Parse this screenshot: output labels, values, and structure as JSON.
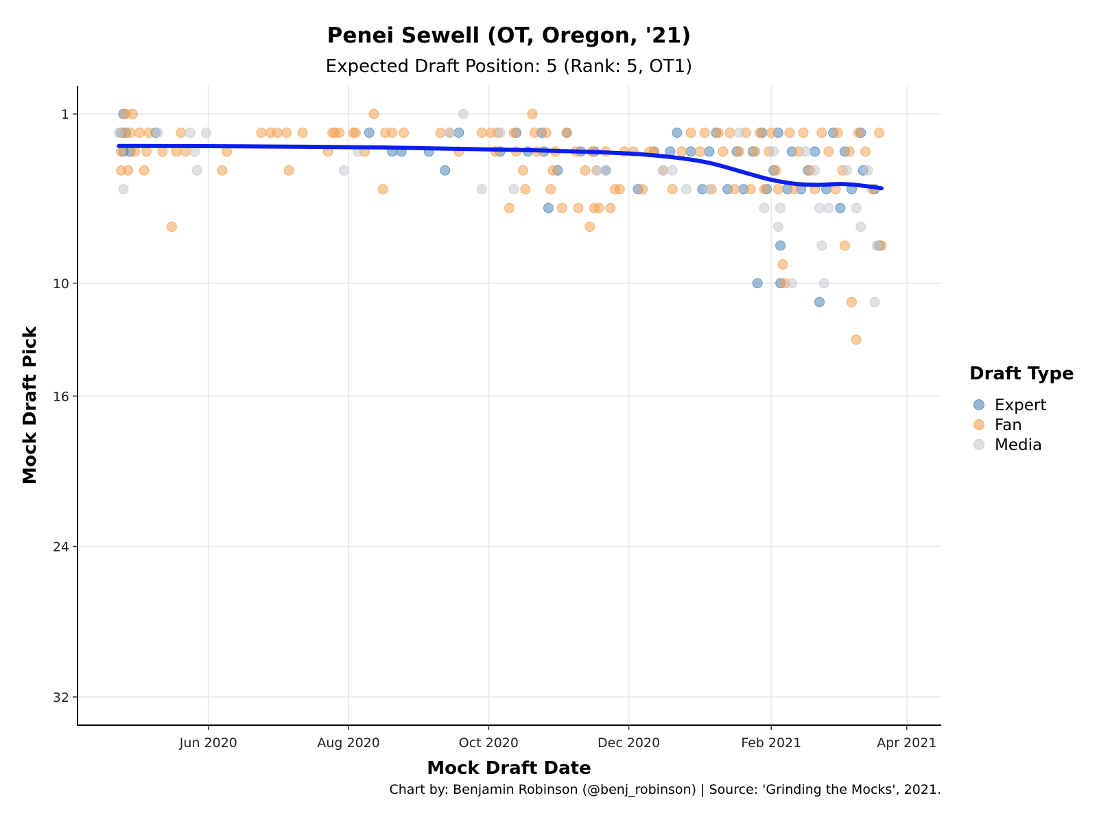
{
  "chart_data": {
    "type": "scatter",
    "title": "Penei Sewell (OT, Oregon, '21)",
    "subtitle": "Expected Draft Position: 5 (Rank: 5, OT1)",
    "xlabel": "Mock Draft Date",
    "ylabel": "Mock Draft Pick",
    "caption": "Chart by: Benjamin Robinson (@benj_robinson) | Source: 'Grinding the Mocks', 2021.",
    "x_ticks": [
      "2020-06-01",
      "2020-08-01",
      "2020-10-01",
      "2020-12-01",
      "2021-02-01",
      "2021-04-01"
    ],
    "x_tick_labels": [
      "Jun 2020",
      "Aug 2020",
      "Oct 2020",
      "Dec 2020",
      "Feb 2021",
      "Apr 2021"
    ],
    "xlim": [
      "2020-04-05",
      "2021-04-16"
    ],
    "y_ticks": [
      1,
      10,
      16,
      24,
      32
    ],
    "ylim": [
      33.5,
      -0.5
    ],
    "y_reversed": true,
    "grid": true,
    "legend": {
      "title": "Draft Type",
      "position": "right",
      "entries": [
        "Expert",
        "Fan",
        "Media"
      ]
    },
    "colors": {
      "Expert": "#4f86b8",
      "Fan": "#f4a253",
      "Media": "#c3c8d0",
      "trend": "#0a1ef0"
    },
    "series": [
      {
        "name": "Expert",
        "points": [
          [
            "2020-04-24",
            2
          ],
          [
            "2020-04-25",
            1
          ],
          [
            "2020-04-25",
            3
          ],
          [
            "2020-04-26",
            2
          ],
          [
            "2020-04-28",
            3
          ],
          [
            "2020-05-09",
            2
          ],
          [
            "2020-08-10",
            2
          ],
          [
            "2020-08-20",
            3
          ],
          [
            "2020-08-24",
            3
          ],
          [
            "2020-09-05",
            3
          ],
          [
            "2020-09-12",
            4
          ],
          [
            "2020-09-18",
            2
          ],
          [
            "2020-10-06",
            3
          ],
          [
            "2020-10-13",
            2
          ],
          [
            "2020-10-18",
            3
          ],
          [
            "2020-10-24",
            2
          ],
          [
            "2020-10-25",
            3
          ],
          [
            "2020-10-27",
            6
          ],
          [
            "2020-10-31",
            4
          ],
          [
            "2020-11-04",
            2
          ],
          [
            "2020-11-10",
            3
          ],
          [
            "2020-11-16",
            3
          ],
          [
            "2020-11-21",
            4
          ],
          [
            "2020-12-05",
            5
          ],
          [
            "2020-12-12",
            3
          ],
          [
            "2020-12-19",
            3
          ],
          [
            "2020-12-22",
            2
          ],
          [
            "2020-12-28",
            3
          ],
          [
            "2021-01-02",
            5
          ],
          [
            "2021-01-05",
            3
          ],
          [
            "2021-01-08",
            2
          ],
          [
            "2021-01-13",
            5
          ],
          [
            "2021-01-17",
            3
          ],
          [
            "2021-01-20",
            5
          ],
          [
            "2021-01-24",
            3
          ],
          [
            "2021-01-26",
            10
          ],
          [
            "2021-01-28",
            2
          ],
          [
            "2021-01-30",
            5
          ],
          [
            "2021-02-02",
            4
          ],
          [
            "2021-02-04",
            2
          ],
          [
            "2021-02-05",
            8
          ],
          [
            "2021-02-05",
            10
          ],
          [
            "2021-02-08",
            5
          ],
          [
            "2021-02-10",
            3
          ],
          [
            "2021-02-14",
            5
          ],
          [
            "2021-02-17",
            4
          ],
          [
            "2021-02-20",
            3
          ],
          [
            "2021-02-22",
            11
          ],
          [
            "2021-02-25",
            5
          ],
          [
            "2021-02-28",
            2
          ],
          [
            "2021-03-03",
            6
          ],
          [
            "2021-03-05",
            3
          ],
          [
            "2021-03-08",
            5
          ],
          [
            "2021-03-12",
            2
          ],
          [
            "2021-03-13",
            4
          ],
          [
            "2021-03-18",
            5
          ],
          [
            "2021-03-20",
            8
          ]
        ]
      },
      {
        "name": "Fan",
        "points": [
          [
            "2020-04-24",
            3
          ],
          [
            "2020-04-24",
            4
          ],
          [
            "2020-04-25",
            2
          ],
          [
            "2020-04-26",
            1
          ],
          [
            "2020-04-27",
            4
          ],
          [
            "2020-04-28",
            2
          ],
          [
            "2020-04-29",
            1
          ],
          [
            "2020-04-30",
            3
          ],
          [
            "2020-05-02",
            2
          ],
          [
            "2020-05-04",
            4
          ],
          [
            "2020-05-05",
            3
          ],
          [
            "2020-05-06",
            2
          ],
          [
            "2020-05-12",
            3
          ],
          [
            "2020-05-16",
            7
          ],
          [
            "2020-05-18",
            3
          ],
          [
            "2020-05-20",
            2
          ],
          [
            "2020-05-22",
            3
          ],
          [
            "2020-06-07",
            4
          ],
          [
            "2020-06-09",
            3
          ],
          [
            "2020-06-24",
            2
          ],
          [
            "2020-06-28",
            2
          ],
          [
            "2020-07-01",
            2
          ],
          [
            "2020-07-05",
            2
          ],
          [
            "2020-07-06",
            4
          ],
          [
            "2020-07-12",
            2
          ],
          [
            "2020-07-23",
            3
          ],
          [
            "2020-07-25",
            2
          ],
          [
            "2020-07-26",
            2
          ],
          [
            "2020-07-28",
            2
          ],
          [
            "2020-08-03",
            2
          ],
          [
            "2020-08-04",
            2
          ],
          [
            "2020-08-08",
            3
          ],
          [
            "2020-08-12",
            1
          ],
          [
            "2020-08-16",
            5
          ],
          [
            "2020-08-17",
            2
          ],
          [
            "2020-08-20",
            2
          ],
          [
            "2020-08-25",
            2
          ],
          [
            "2020-09-10",
            2
          ],
          [
            "2020-09-14",
            2
          ],
          [
            "2020-09-18",
            3
          ],
          [
            "2020-09-28",
            2
          ],
          [
            "2020-10-02",
            2
          ],
          [
            "2020-10-04",
            3
          ],
          [
            "2020-10-05",
            2
          ],
          [
            "2020-10-10",
            6
          ],
          [
            "2020-10-12",
            2
          ],
          [
            "2020-10-13",
            3
          ],
          [
            "2020-10-16",
            4
          ],
          [
            "2020-10-17",
            5
          ],
          [
            "2020-10-20",
            1
          ],
          [
            "2020-10-21",
            2
          ],
          [
            "2020-10-22",
            3
          ],
          [
            "2020-10-26",
            2
          ],
          [
            "2020-10-28",
            5
          ],
          [
            "2020-10-29",
            4
          ],
          [
            "2020-10-30",
            3
          ],
          [
            "2020-11-02",
            6
          ],
          [
            "2020-11-04",
            2
          ],
          [
            "2020-11-08",
            3
          ],
          [
            "2020-11-09",
            6
          ],
          [
            "2020-11-12",
            4
          ],
          [
            "2020-11-14",
            7
          ],
          [
            "2020-11-15",
            3
          ],
          [
            "2020-11-16",
            6
          ],
          [
            "2020-11-17",
            4
          ],
          [
            "2020-11-18",
            6
          ],
          [
            "2020-11-21",
            3
          ],
          [
            "2020-11-23",
            6
          ],
          [
            "2020-11-25",
            5
          ],
          [
            "2020-11-27",
            5
          ],
          [
            "2020-11-29",
            3
          ],
          [
            "2020-12-03",
            3
          ],
          [
            "2020-12-07",
            5
          ],
          [
            "2020-12-10",
            3
          ],
          [
            "2020-12-12",
            3
          ],
          [
            "2020-12-16",
            4
          ],
          [
            "2020-12-20",
            5
          ],
          [
            "2020-12-24",
            3
          ],
          [
            "2020-12-28",
            2
          ],
          [
            "2021-01-01",
            3
          ],
          [
            "2021-01-03",
            2
          ],
          [
            "2021-01-06",
            5
          ],
          [
            "2021-01-09",
            2
          ],
          [
            "2021-01-11",
            3
          ],
          [
            "2021-01-14",
            2
          ],
          [
            "2021-01-16",
            5
          ],
          [
            "2021-01-18",
            3
          ],
          [
            "2021-01-21",
            2
          ],
          [
            "2021-01-23",
            5
          ],
          [
            "2021-01-25",
            3
          ],
          [
            "2021-01-27",
            2
          ],
          [
            "2021-01-29",
            5
          ],
          [
            "2021-01-31",
            3
          ],
          [
            "2021-02-01",
            2
          ],
          [
            "2021-02-03",
            4
          ],
          [
            "2021-02-04",
            5
          ],
          [
            "2021-02-06",
            9
          ],
          [
            "2021-02-07",
            10
          ],
          [
            "2021-02-09",
            2
          ],
          [
            "2021-02-11",
            5
          ],
          [
            "2021-02-13",
            3
          ],
          [
            "2021-02-15",
            2
          ],
          [
            "2021-02-18",
            4
          ],
          [
            "2021-02-20",
            5
          ],
          [
            "2021-02-23",
            2
          ],
          [
            "2021-02-26",
            3
          ],
          [
            "2021-03-01",
            5
          ],
          [
            "2021-03-02",
            2
          ],
          [
            "2021-03-04",
            4
          ],
          [
            "2021-03-05",
            8
          ],
          [
            "2021-03-07",
            3
          ],
          [
            "2021-03-08",
            11
          ],
          [
            "2021-03-10",
            13
          ],
          [
            "2021-03-11",
            2
          ],
          [
            "2021-03-14",
            3
          ],
          [
            "2021-03-17",
            5
          ],
          [
            "2021-03-20",
            2
          ],
          [
            "2021-03-21",
            8
          ]
        ]
      },
      {
        "name": "Media",
        "points": [
          [
            "2020-04-23",
            2
          ],
          [
            "2020-04-25",
            5
          ],
          [
            "2020-05-10",
            2
          ],
          [
            "2020-05-24",
            2
          ],
          [
            "2020-05-26",
            3
          ],
          [
            "2020-05-27",
            4
          ],
          [
            "2020-05-31",
            2
          ],
          [
            "2020-07-30",
            4
          ],
          [
            "2020-08-05",
            3
          ],
          [
            "2020-09-14",
            2
          ],
          [
            "2020-09-20",
            1
          ],
          [
            "2020-09-28",
            5
          ],
          [
            "2020-10-06",
            2
          ],
          [
            "2020-10-12",
            5
          ],
          [
            "2020-11-17",
            4
          ],
          [
            "2020-11-21",
            4
          ],
          [
            "2020-12-16",
            4
          ],
          [
            "2020-12-20",
            4
          ],
          [
            "2020-12-26",
            5
          ],
          [
            "2021-01-05",
            5
          ],
          [
            "2021-01-18",
            2
          ],
          [
            "2021-01-29",
            6
          ],
          [
            "2021-02-02",
            3
          ],
          [
            "2021-02-04",
            7
          ],
          [
            "2021-02-05",
            6
          ],
          [
            "2021-02-10",
            10
          ],
          [
            "2021-02-16",
            3
          ],
          [
            "2021-02-20",
            4
          ],
          [
            "2021-02-22",
            6
          ],
          [
            "2021-02-23",
            8
          ],
          [
            "2021-02-24",
            10
          ],
          [
            "2021-02-26",
            6
          ],
          [
            "2021-03-06",
            4
          ],
          [
            "2021-03-10",
            6
          ],
          [
            "2021-03-12",
            7
          ],
          [
            "2021-03-15",
            4
          ],
          [
            "2021-03-18",
            11
          ],
          [
            "2021-03-19",
            8
          ]
        ]
      }
    ],
    "trend": [
      [
        "2020-04-23",
        2.7
      ],
      [
        "2020-06-15",
        2.72
      ],
      [
        "2020-08-15",
        2.78
      ],
      [
        "2020-10-01",
        2.88
      ],
      [
        "2020-11-01",
        2.97
      ],
      [
        "2020-12-01",
        3.1
      ],
      [
        "2020-12-20",
        3.3
      ],
      [
        "2021-01-05",
        3.6
      ],
      [
        "2021-01-20",
        4.1
      ],
      [
        "2021-02-01",
        4.5
      ],
      [
        "2021-02-12",
        4.72
      ],
      [
        "2021-02-22",
        4.77
      ],
      [
        "2021-03-03",
        4.72
      ],
      [
        "2021-03-12",
        4.8
      ],
      [
        "2021-03-21",
        4.95
      ]
    ]
  }
}
